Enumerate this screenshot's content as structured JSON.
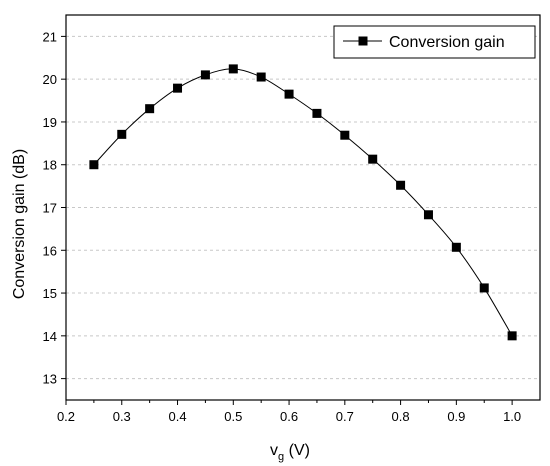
{
  "chart_data": {
    "type": "line",
    "x": [
      0.25,
      0.3,
      0.35,
      0.4,
      0.45,
      0.5,
      0.55,
      0.6,
      0.65,
      0.7,
      0.75,
      0.8,
      0.85,
      0.9,
      0.95,
      1.0
    ],
    "series": [
      {
        "name": "Conversion gain",
        "values": [
          18.0,
          18.71,
          19.31,
          19.79,
          20.1,
          20.24,
          20.05,
          19.65,
          19.2,
          18.69,
          18.13,
          17.52,
          16.83,
          16.07,
          15.12,
          14.0
        ],
        "color": "#000000",
        "marker": "square"
      }
    ],
    "xlabel": "v",
    "xlabel_subscript": "g",
    "xlabel_unit": " (V)",
    "ylabel": "Conversion gain (dB)",
    "xlim": [
      0.2,
      1.05
    ],
    "ylim": [
      12.5,
      21.5
    ],
    "xticks": [
      0.2,
      0.3,
      0.4,
      0.5,
      0.6,
      0.7,
      0.8,
      0.9,
      1.0
    ],
    "xtick_labels": [
      "0.2",
      "0.3",
      "0.4",
      "0.5",
      "0.6",
      "0.7",
      "0.8",
      "0.9",
      "1.0"
    ],
    "yticks": [
      13,
      14,
      15,
      16,
      17,
      18,
      19,
      20,
      21
    ],
    "ytick_labels": [
      "13",
      "14",
      "15",
      "16",
      "17",
      "18",
      "19",
      "20",
      "21"
    ],
    "grid": true,
    "legend_position": "top-right"
  }
}
